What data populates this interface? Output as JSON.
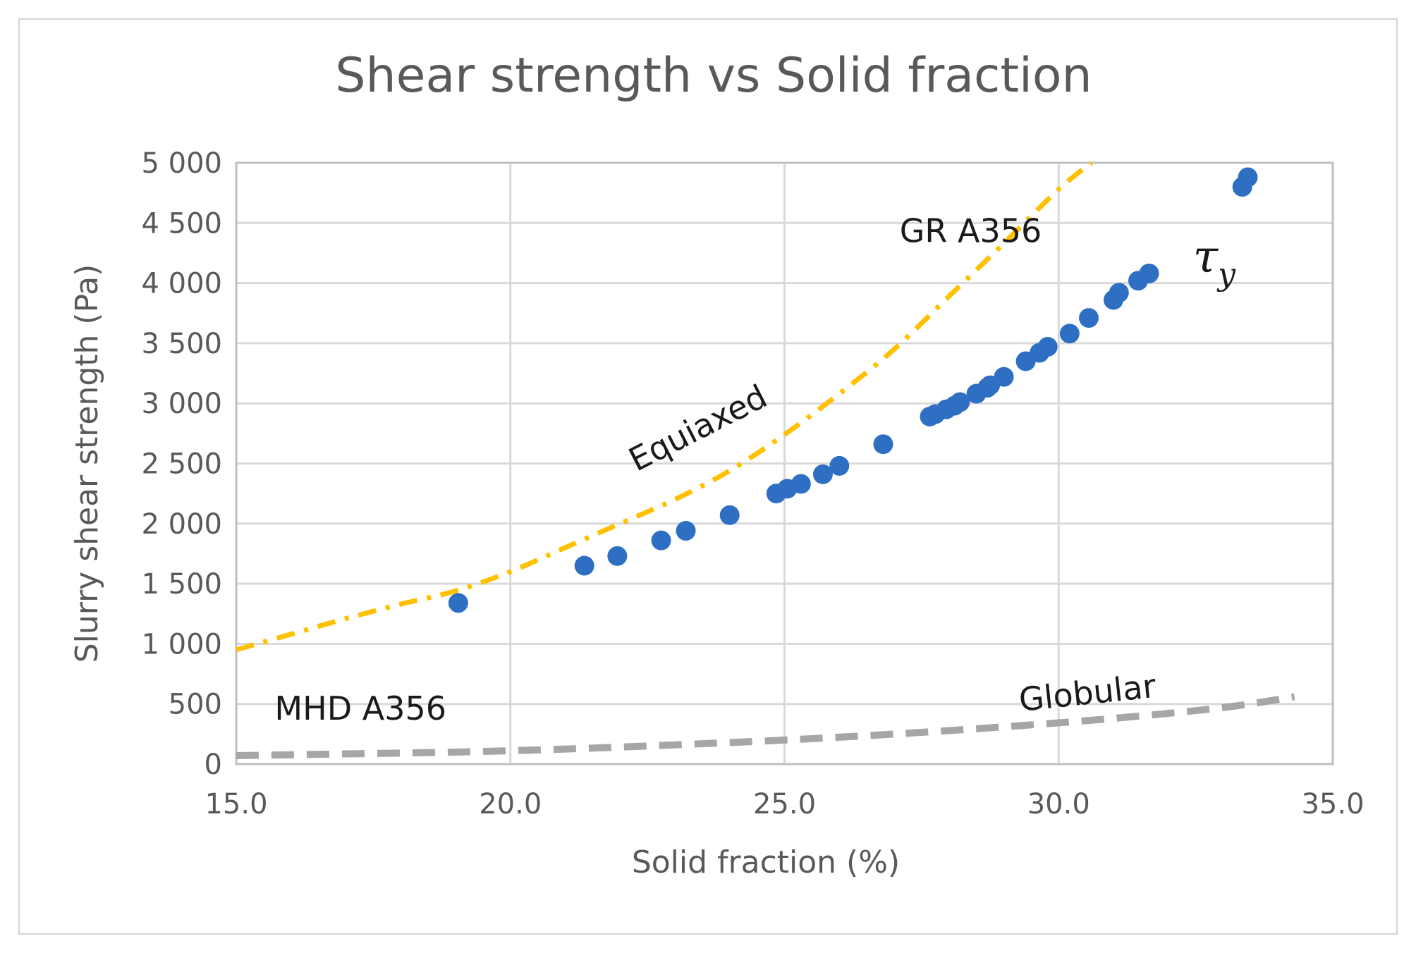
{
  "chart_data": {
    "type": "scatter",
    "title": "Shear strength vs Solid fraction",
    "xlabel": "Solid fraction (%)",
    "ylabel": "Slurry shear strength (Pa)",
    "xlim": [
      15.0,
      35.0
    ],
    "ylim": [
      0,
      5000
    ],
    "x_ticks": [
      15,
      20,
      25,
      30,
      35
    ],
    "x_tick_labels": [
      "15.0",
      "20.0",
      "25.0",
      "30.0",
      "35.0"
    ],
    "y_ticks": [
      0,
      500,
      1000,
      1500,
      2000,
      2500,
      3000,
      3500,
      4000,
      4500,
      5000
    ],
    "y_tick_labels": [
      "0",
      "500",
      "1 000",
      "1 500",
      "2 000",
      "2 500",
      "3 000",
      "3 500",
      "4 000",
      "4 500",
      "5 000"
    ],
    "grid": true,
    "legend": "none",
    "series": [
      {
        "name": "τy",
        "style": "markers",
        "color": "#2e6fc4",
        "points": [
          [
            19.05,
            1340
          ],
          [
            21.35,
            1650
          ],
          [
            21.95,
            1730
          ],
          [
            22.75,
            1860
          ],
          [
            23.2,
            1940
          ],
          [
            24.0,
            2070
          ],
          [
            24.85,
            2250
          ],
          [
            25.05,
            2290
          ],
          [
            25.3,
            2330
          ],
          [
            25.7,
            2410
          ],
          [
            26.0,
            2480
          ],
          [
            26.8,
            2660
          ],
          [
            27.65,
            2890
          ],
          [
            27.75,
            2910
          ],
          [
            27.95,
            2950
          ],
          [
            28.1,
            2980
          ],
          [
            28.2,
            3010
          ],
          [
            28.5,
            3080
          ],
          [
            28.7,
            3130
          ],
          [
            28.75,
            3150
          ],
          [
            29.0,
            3220
          ],
          [
            29.4,
            3350
          ],
          [
            29.65,
            3420
          ],
          [
            29.8,
            3470
          ],
          [
            30.2,
            3580
          ],
          [
            30.55,
            3710
          ],
          [
            31.0,
            3860
          ],
          [
            31.1,
            3920
          ],
          [
            31.45,
            4020
          ],
          [
            31.65,
            4080
          ],
          [
            33.35,
            4800
          ],
          [
            33.45,
            4880
          ]
        ]
      },
      {
        "name": "GR A356 Equiaxed",
        "style": "dash-dot",
        "color": "#ffc000",
        "x": [
          15,
          16,
          17,
          18,
          19,
          20,
          21,
          22,
          23,
          24,
          25,
          26,
          27,
          28,
          29,
          30,
          30.6
        ],
        "y": [
          950,
          1080,
          1210,
          1330,
          1440,
          1600,
          1800,
          2000,
          2200,
          2440,
          2740,
          3080,
          3450,
          3890,
          4330,
          4780,
          5000
        ]
      },
      {
        "name": "MHD A356 Globular",
        "style": "dashed",
        "color": "#a6a6a6",
        "x": [
          15,
          17,
          19,
          21,
          23,
          25,
          27,
          29,
          31,
          33,
          34.3
        ],
        "y": [
          70,
          85,
          100,
          125,
          160,
          200,
          250,
          310,
          380,
          470,
          560
        ]
      }
    ],
    "annotations": [
      {
        "text": "GR A356",
        "x": 27.1,
        "y": 4340
      },
      {
        "text": "Equiaxed",
        "x": 22.3,
        "y": 2430
      },
      {
        "text": "MHD A356",
        "x": 15.7,
        "y": 370
      },
      {
        "text": "Globular",
        "x": 29.3,
        "y": 440
      },
      {
        "text": "τ",
        "subscript": "y",
        "x": 32.45,
        "y": 4090
      }
    ]
  }
}
